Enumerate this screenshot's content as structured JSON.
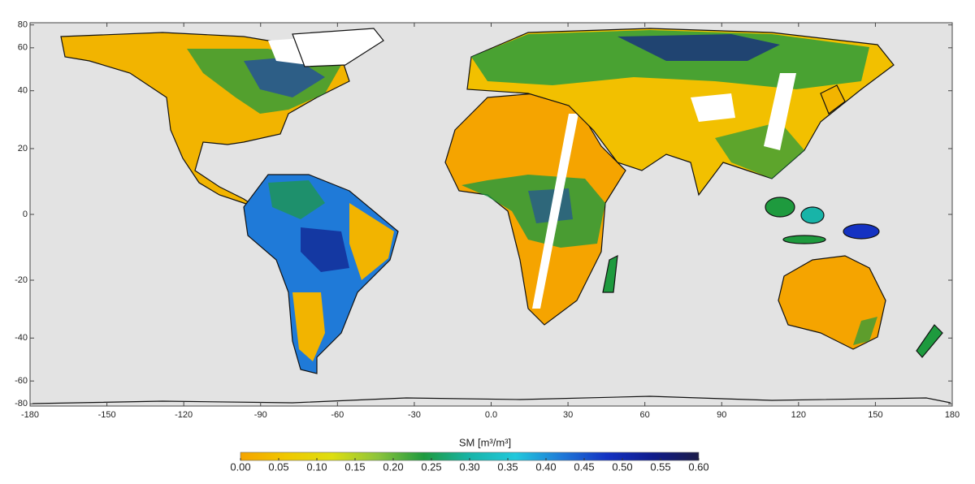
{
  "chart_data": {
    "type": "map",
    "projection": "cylindrical equal-area",
    "xlim": [
      -180,
      180
    ],
    "ylim": [
      -85,
      85
    ],
    "xticks": [
      -180,
      -150,
      -120,
      -90,
      -60,
      -30,
      {
        "value": 0,
        "label": "0.0"
      },
      30,
      60,
      90,
      120,
      150,
      180
    ],
    "yticks": [
      80,
      60,
      40,
      20,
      0,
      -20,
      -40,
      -60,
      -80
    ],
    "colorbar_label": "SM [m³/m³]",
    "colorbar_lim": [
      0,
      0.6
    ],
    "colorbar_ticks": [
      {
        "value": 0,
        "label": "0.00"
      },
      {
        "value": 0.05,
        "label": "0.05"
      },
      {
        "value": 0.1,
        "label": "0.10"
      },
      {
        "value": 0.15,
        "label": "0.15"
      },
      {
        "value": 0.2,
        "label": "0.20"
      },
      {
        "value": 0.25,
        "label": "0.25"
      },
      {
        "value": 0.3,
        "label": "0.30"
      },
      {
        "value": 0.35,
        "label": "0.35"
      },
      {
        "value": 0.4,
        "label": "0.40"
      },
      {
        "value": 0.45,
        "label": "0.45"
      },
      {
        "value": 0.5,
        "label": "0.50"
      },
      {
        "value": 0.55,
        "label": "0.55"
      },
      {
        "value": 0.6,
        "label": "0.60"
      }
    ],
    "colormap": [
      "#f5a400",
      "#f0c800",
      "#dede10",
      "#8cc43c",
      "#1e9a3e",
      "#18b4a8",
      "#22c8dc",
      "#1f7ad8",
      "#1432c2",
      "#101c8c",
      "#1c1c48"
    ]
  }
}
